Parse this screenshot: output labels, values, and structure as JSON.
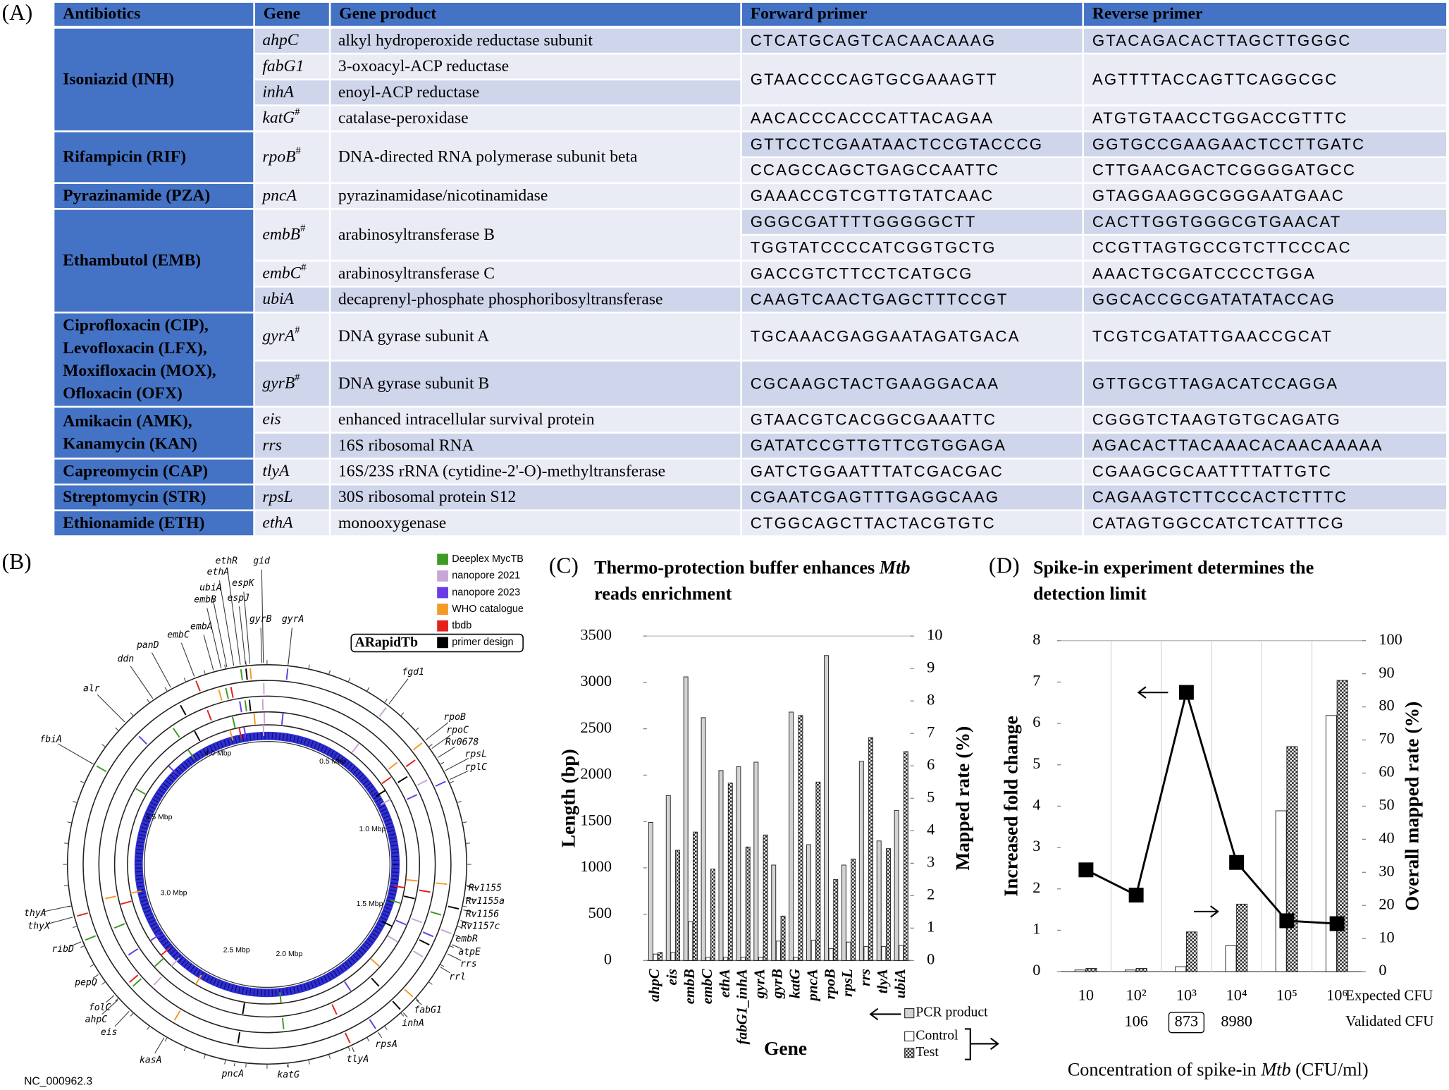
{
  "panel_labels": [
    "(A)",
    "(B)",
    "(C)",
    "(D)"
  ],
  "table": {
    "header": [
      "Antibiotics",
      "Gene",
      "Gene product",
      "Forward primer",
      "Reverse primer"
    ],
    "groups": [
      {
        "antibiotic": [
          "Isoniazid (INH)"
        ],
        "blocks": [
          {
            "genes": [
              {
                "gene": "ahpC",
                "product": "alkyl hydroperoxide reductase subunit"
              }
            ],
            "primers": [
              {
                "forward": "CTCATGCAGTCACAACAAAG",
                "reverse": "GTACAGACACTTAGCTTGGGC"
              }
            ]
          },
          {
            "genes": [
              {
                "gene": "fabG1",
                "product": "3-oxoacyl-ACP reductase"
              },
              {
                "gene": "inhA",
                "product": "enoyl-ACP reductase"
              }
            ],
            "primers": [
              {
                "forward": "GTAACCCCAGTGCGAAAGTT",
                "reverse": "AGTTTTACCAGTTCAGGCGC"
              }
            ]
          },
          {
            "genes": [
              {
                "gene": "katG",
                "mark": "#",
                "product": "catalase-peroxidase"
              }
            ],
            "primers": [
              {
                "forward": "AACACCCACCCATTACAGAA",
                "reverse": "ATGTGTAACCTGGACCGTTTC"
              }
            ]
          }
        ]
      },
      {
        "antibiotic": [
          "Rifampicin (RIF)"
        ],
        "blocks": [
          {
            "genes": [
              {
                "gene": "rpoB",
                "mark": "#",
                "product": "DNA-directed RNA polymerase subunit beta"
              }
            ],
            "primers": [
              {
                "forward": "GTTCCTCGAATAACTCCGTACCCG",
                "reverse": "GGTGCCGAAGAACTCCTTGATC"
              },
              {
                "forward": "CCAGCCAGCTGAGCCAATTC",
                "reverse": "CTTGAACGACTCGGGGATGCC"
              }
            ]
          }
        ]
      },
      {
        "antibiotic": [
          "Pyrazinamide (PZA)"
        ],
        "blocks": [
          {
            "genes": [
              {
                "gene": "pncA",
                "product": "pyrazinamidase/nicotinamidase"
              }
            ],
            "primers": [
              {
                "forward": "GAAACCGTCGTTGTATCAAC",
                "reverse": "GTAGGAAGGCGGGAATGAAC"
              }
            ]
          }
        ]
      },
      {
        "antibiotic": [
          "Ethambutol (EMB)"
        ],
        "blocks": [
          {
            "genes": [
              {
                "gene": "embB",
                "mark": "#",
                "product": "arabinosyltransferase B"
              }
            ],
            "primers": [
              {
                "forward": "GGGCGATTTTGGGGGCTT",
                "reverse": "CACTTGGTGGGCGTGAACAT"
              },
              {
                "forward": "TGGTATCCCCATCGGTGCTG",
                "reverse": "CCGTTAGTGCCGTCTTCCCAC"
              }
            ]
          },
          {
            "genes": [
              {
                "gene": "embC",
                "mark": "#",
                "product": "arabinosyltransferase C"
              }
            ],
            "primers": [
              {
                "forward": "GACCGTCTTCCTCATGCG",
                "reverse": "AAACTGCGATCCCCTGGA"
              }
            ]
          },
          {
            "genes": [
              {
                "gene": "ubiA",
                "product": "decaprenyl-phosphate phosphoribosyltransferase"
              }
            ],
            "primers": [
              {
                "forward": "CAAGTCAACTGAGCTTTCCGT",
                "reverse": "GGCACCGCGATATATACCAG"
              }
            ]
          }
        ]
      },
      {
        "antibiotic": [
          "Ciprofloxacin (CIP),",
          "Levofloxacin (LFX),",
          "Moxifloxacin (MOX),",
          "Ofloxacin (OFX)"
        ],
        "blocks": [
          {
            "genes": [
              {
                "gene": "gyrA",
                "mark": "#",
                "product": "DNA gyrase subunit A"
              }
            ],
            "primers": [
              {
                "forward": "TGCAAACGAGGAATAGATGACA",
                "reverse": "TCGTCGATATTGAACCGCAT"
              }
            ]
          },
          {
            "genes": [
              {
                "gene": "gyrB",
                "mark": "#",
                "product": "DNA gyrase subunit B"
              }
            ],
            "primers": [
              {
                "forward": "CGCAAGCTACTGAAGGACAA",
                "reverse": "GTTGCGTTAGACATCCAGGA"
              }
            ]
          }
        ]
      },
      {
        "antibiotic": [
          "Amikacin (AMK),",
          "Kanamycin (KAN)"
        ],
        "blocks": [
          {
            "genes": [
              {
                "gene": "eis",
                "product": "enhanced intracellular survival protein"
              }
            ],
            "primers": [
              {
                "forward": "GTAACGTCACGGCGAAATTC",
                "reverse": "CGGGTCTAAGTGTGCAGATG"
              }
            ]
          },
          {
            "genes": [
              {
                "gene": "rrs",
                "product": "16S ribosomal RNA"
              }
            ],
            "primers": [
              {
                "forward": "GATATCCGTTGTTCGTGGAGA",
                "reverse": "AGACACTTACAAACACAACAAAAA"
              }
            ]
          }
        ]
      },
      {
        "antibiotic": [
          "Capreomycin (CAP)"
        ],
        "blocks": [
          {
            "genes": [
              {
                "gene": "tlyA",
                "product": "16S/23S rRNA (cytidine-2'-O)-methyltransferase"
              }
            ],
            "primers": [
              {
                "forward": "GATCTGGAATTTATCGACGAC",
                "reverse": "CGAAGCGCAATTTTATTGTC"
              }
            ]
          }
        ]
      },
      {
        "antibiotic": [
          "Streptomycin (STR)"
        ],
        "blocks": [
          {
            "genes": [
              {
                "gene": "rpsL",
                "product": "30S ribosomal protein S12"
              }
            ],
            "primers": [
              {
                "forward": "CGAATCGAGTTTGAGGCAAG",
                "reverse": "CAGAAGTCTTCCCACTCTTTC"
              }
            ]
          }
        ]
      },
      {
        "antibiotic": [
          "Ethionamide (ETH)"
        ],
        "blocks": [
          {
            "genes": [
              {
                "gene": "ethA",
                "product": "monooxygenase"
              }
            ],
            "primers": [
              {
                "forward": "CTGGCAGCTTACTACGTGTC",
                "reverse": "CATAGTGGCCATCTCATTTCG"
              }
            ]
          }
        ]
      }
    ]
  },
  "genome": {
    "legend": [
      {
        "name": "Deeplex MycTB",
        "color": "#3f9a25"
      },
      {
        "name": "nanopore 2021",
        "color": "#c8a6d6"
      },
      {
        "name": "nanopore 2023",
        "color": "#6a3be6"
      },
      {
        "name": "WHO catalogue",
        "color": "#f59a26"
      },
      {
        "name": "tbdb",
        "color": "#e3221c"
      },
      {
        "name": "primer design",
        "color": "#000000"
      }
    ],
    "tool": "ARapidTb",
    "accession": "NC_000962.3",
    "scale_labels": [
      "0.5 Mbp",
      "1.0 Mbp",
      "1.5 Mbp",
      "2.0 Mbp",
      "2.5 Mbp",
      "3.0 Mbp",
      "3.5 Mbp",
      "4.0 Mbp"
    ],
    "genes": [
      "ethR",
      "gid",
      "ethA",
      "espK",
      "ubiA",
      "espJ",
      "embB",
      "gyrB",
      "gyrA",
      "embA",
      "embC",
      "panD",
      "ddn",
      "fgd1",
      "alr",
      "rpoB",
      "rpoC",
      "Rv0678",
      "fbiA",
      "rpsL",
      "rplC",
      "Rv1155",
      "Rv1155a",
      "Rv1156",
      "Rv1157c",
      "embR",
      "atpE",
      "thyA",
      "thyX",
      "rrs",
      "ribD",
      "rrl",
      "pepQ",
      "fabG1",
      "folC",
      "inhA",
      "ahpC",
      "eis",
      "rpsA",
      "kasA",
      "tlyA",
      "pncA",
      "katG"
    ]
  },
  "chart_data": [
    {
      "type": "bar",
      "title": [
        [
          {
            "text": "Thermo-protection buffer enhances "
          },
          {
            "text": "Mtb",
            "italic": true
          }
        ],
        [
          {
            "text": "reads enrichment"
          }
        ]
      ],
      "xlabel": "Gene",
      "ylabel": "Length (bp)",
      "y2label": "Mapped rate (%)",
      "categories": [
        "ahpC",
        "eis",
        "embB",
        "embC",
        "ethA",
        "fabG1_inhA",
        "gyrA",
        "gyrB",
        "katG",
        "pncA",
        "rpoB",
        "rpsL",
        "rrs",
        "tlyA",
        "ubiA"
      ],
      "ylim": [
        0,
        3500
      ],
      "yticks": [
        0,
        500,
        1000,
        1500,
        2000,
        2500,
        3000,
        3500
      ],
      "y2lim": [
        0,
        10
      ],
      "y2ticks": [
        0,
        1,
        2,
        3,
        4,
        5,
        6,
        7,
        8,
        9,
        10
      ],
      "series": [
        {
          "name": "PCR product",
          "color": "#d3d3d3",
          "values": [
            1490,
            1780,
            3060,
            2620,
            2050,
            2090,
            2140,
            1030,
            2680,
            1250,
            3290,
            1030,
            2150,
            1290,
            1620
          ]
        },
        {
          "name": "Control",
          "color": "#ffffff",
          "axis": "y2",
          "values": [
            0.2,
            0.25,
            1.2,
            0.1,
            0.1,
            0.1,
            0.1,
            0.6,
            0.1,
            0.63,
            0.37,
            0.57,
            0.43,
            0.43,
            0.46
          ]
        },
        {
          "name": "Test",
          "color": "#333333",
          "hatch": true,
          "axis": "y2",
          "values": [
            0.25,
            3.4,
            3.96,
            2.82,
            5.47,
            3.5,
            3.87,
            1.37,
            7.55,
            5.5,
            2.5,
            3.13,
            6.87,
            3.45,
            6.44
          ]
        }
      ]
    },
    {
      "type": "bar",
      "title": [
        [
          {
            "text": "Spike-in experiment determines the"
          }
        ],
        [
          {
            "text": "detection limit"
          }
        ]
      ],
      "xlabel": [
        {
          "text": "Concentration of spike-in "
        },
        {
          "text": "Mtb",
          "italic": true
        },
        {
          "text": " (CFU/ml)"
        }
      ],
      "ylabel": "Increased fold change",
      "y2label": "Overall mapped rate (%)",
      "categories": [
        "10",
        "10²",
        "10³",
        "10⁴",
        "10⁵",
        "10⁶"
      ],
      "categories_label": "Expected CFU",
      "validated_label": "Validated CFU",
      "validated": [
        null,
        106,
        873,
        8980,
        null,
        null
      ],
      "validated_boxed": [
        false,
        false,
        true,
        false,
        false,
        false
      ],
      "ylim": [
        0,
        8
      ],
      "yticks": [
        0,
        1,
        2,
        3,
        4,
        5,
        6,
        7,
        8
      ],
      "y2lim": [
        0,
        100
      ],
      "y2ticks": [
        0,
        10,
        20,
        30,
        40,
        50,
        60,
        70,
        80,
        90,
        100
      ],
      "series": [
        {
          "type": "line",
          "marker": "square",
          "color": "#000000",
          "values": [
            2.46,
            1.85,
            6.75,
            2.64,
            1.23,
            1.16
          ]
        },
        {
          "type": "bar",
          "color": "#ffffff",
          "axis": "y2",
          "values": [
            0.5,
            0.5,
            1.5,
            7.8,
            48.6,
            77.4
          ]
        },
        {
          "type": "bar",
          "color": "#333333",
          "hatch": true,
          "axis": "y2",
          "values": [
            1,
            1,
            12,
            20.4,
            68,
            88
          ]
        }
      ]
    }
  ]
}
